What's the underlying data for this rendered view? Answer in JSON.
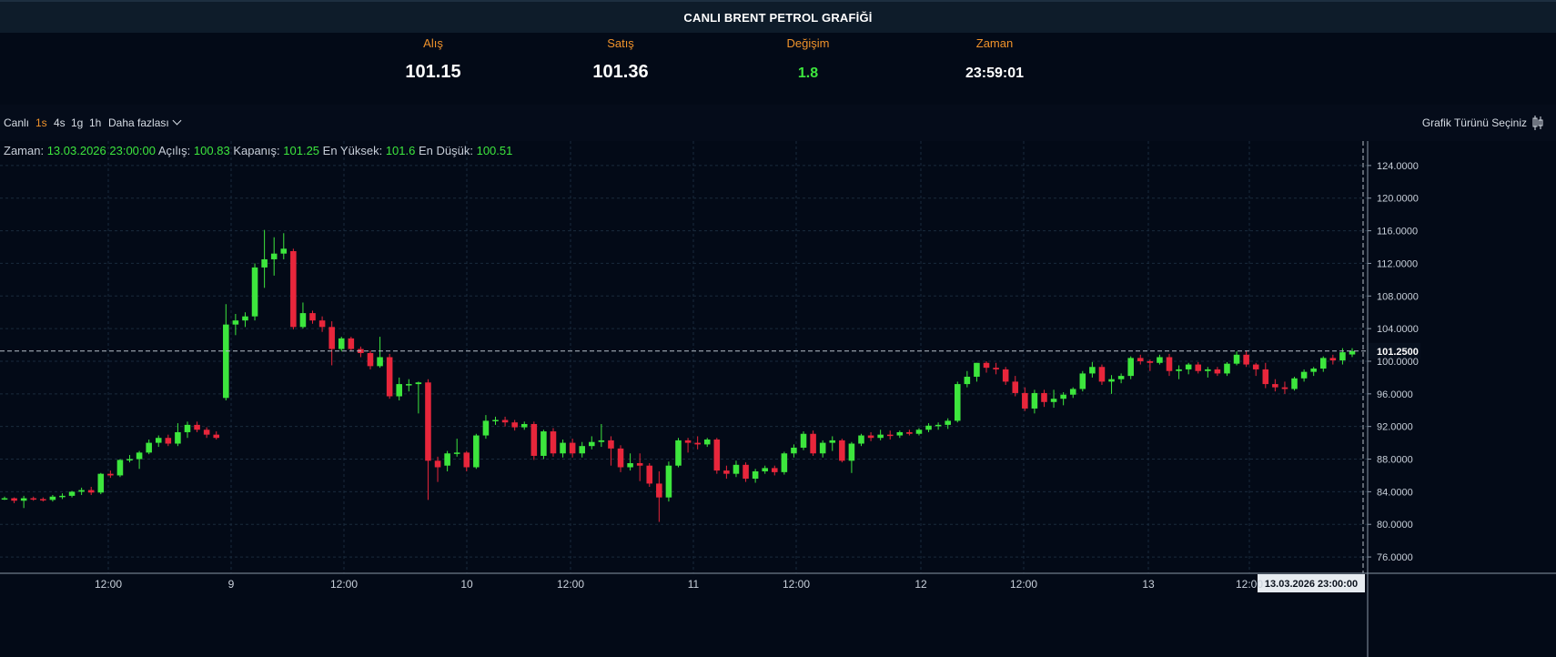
{
  "header": {
    "title": "CANLI BRENT PETROL GRAFİĞİ"
  },
  "quotes": [
    {
      "label": "Alış",
      "value": "101.15"
    },
    {
      "label": "Satış",
      "value": "101.36"
    },
    {
      "label": "Değişim",
      "value": "1.8"
    },
    {
      "label": "Zaman",
      "value": "23:59:01"
    }
  ],
  "toolbar": {
    "live": "Canlı",
    "intervals": [
      "1s",
      "4s",
      "1g",
      "1h"
    ],
    "active_interval": "1s",
    "more": "Daha fazlası",
    "chart_type": "Grafik Türünü Seçiniz"
  },
  "ohlc": {
    "time_label": "Zaman:",
    "time_value": "13.03.2026 23:00:00",
    "open_label": "Açılış:",
    "open_value": "100.83",
    "close_label": "Kapanış:",
    "close_value": "101.25",
    "high_label": "En Yüksek:",
    "high_value": "101.6",
    "low_label": "En Düşük:",
    "low_value": "100.51"
  },
  "colors": {
    "up": "#3de63d",
    "down": "#e8263b",
    "accent": "#f0932b"
  },
  "chart_data": {
    "type": "candlestick",
    "ylim": [
      74,
      127
    ],
    "yticks": [
      "76.0000",
      "80.0000",
      "84.0000",
      "88.0000",
      "92.0000",
      "96.0000",
      "100.0000",
      "104.0000",
      "108.0000",
      "112.0000",
      "116.0000",
      "120.0000",
      "124.0000"
    ],
    "xticks": [
      "12:00",
      "9",
      "12:00",
      "10",
      "12:00",
      "11",
      "12:00",
      "12",
      "12:00",
      "13",
      "12:00"
    ],
    "current_price": "101.2500",
    "crosshair_time": "13.03.2026   23:00:00",
    "grid": true,
    "candles": [
      [
        83.1,
        83.4,
        83.0,
        83.2
      ],
      [
        83.2,
        83.3,
        82.6,
        82.9
      ],
      [
        82.9,
        83.5,
        82.0,
        83.2
      ],
      [
        83.2,
        83.4,
        82.9,
        83.1
      ],
      [
        83.1,
        83.3,
        82.8,
        83.0
      ],
      [
        83.0,
        83.6,
        82.8,
        83.4
      ],
      [
        83.4,
        83.8,
        83.1,
        83.5
      ],
      [
        83.5,
        84.1,
        83.3,
        84.0
      ],
      [
        84.0,
        84.5,
        83.6,
        84.2
      ],
      [
        84.2,
        84.6,
        83.6,
        83.9
      ],
      [
        83.9,
        86.3,
        83.7,
        86.2
      ],
      [
        86.2,
        86.6,
        85.7,
        86.0
      ],
      [
        86.0,
        88.0,
        85.8,
        87.9
      ],
      [
        87.9,
        88.5,
        87.6,
        88.0
      ],
      [
        88.0,
        89.0,
        86.8,
        88.8
      ],
      [
        88.8,
        90.4,
        88.6,
        90.0
      ],
      [
        90.0,
        90.9,
        89.5,
        90.6
      ],
      [
        90.6,
        91.0,
        89.6,
        89.9
      ],
      [
        89.9,
        92.4,
        89.6,
        91.3
      ],
      [
        91.3,
        92.6,
        90.6,
        92.2
      ],
      [
        92.2,
        92.6,
        91.3,
        91.6
      ],
      [
        91.6,
        91.9,
        90.6,
        91.0
      ],
      [
        91.0,
        91.4,
        90.4,
        90.6
      ],
      [
        95.5,
        107.0,
        95.2,
        104.5
      ],
      [
        104.5,
        105.8,
        103.2,
        105.0
      ],
      [
        105.0,
        106.0,
        104.2,
        105.5
      ],
      [
        105.5,
        112.0,
        105.0,
        111.5
      ],
      [
        111.5,
        116.1,
        109.0,
        112.5
      ],
      [
        112.5,
        115.2,
        110.5,
        113.2
      ],
      [
        113.2,
        115.7,
        112.5,
        113.8
      ],
      [
        113.5,
        113.8,
        103.9,
        104.2
      ],
      [
        104.2,
        107.2,
        104.0,
        105.9
      ],
      [
        105.9,
        106.2,
        104.6,
        105.0
      ],
      [
        105.0,
        105.5,
        103.6,
        104.2
      ],
      [
        104.2,
        104.9,
        99.5,
        101.5
      ],
      [
        101.5,
        103.0,
        101.2,
        102.8
      ],
      [
        102.8,
        103.0,
        101.3,
        101.5
      ],
      [
        101.5,
        101.8,
        100.5,
        101.0
      ],
      [
        101.0,
        101.3,
        99.0,
        99.4
      ],
      [
        99.4,
        103.0,
        99.2,
        100.5
      ],
      [
        100.5,
        100.9,
        95.4,
        95.7
      ],
      [
        95.7,
        98.0,
        95.2,
        97.2
      ],
      [
        97.2,
        97.8,
        96.3,
        97.2
      ],
      [
        97.2,
        97.5,
        93.6,
        97.4
      ],
      [
        97.4,
        97.8,
        83.0,
        87.8
      ],
      [
        87.8,
        88.3,
        85.2,
        87.0
      ],
      [
        87.2,
        89.0,
        86.5,
        88.7
      ],
      [
        88.7,
        90.5,
        88.3,
        88.8
      ],
      [
        88.8,
        89.0,
        86.5,
        87.0
      ],
      [
        87.0,
        91.1,
        86.8,
        90.9
      ],
      [
        90.9,
        93.4,
        90.5,
        92.7
      ],
      [
        92.7,
        93.2,
        92.2,
        92.8
      ],
      [
        92.8,
        93.2,
        92.0,
        92.5
      ],
      [
        92.5,
        92.8,
        91.5,
        91.9
      ],
      [
        91.9,
        92.6,
        91.6,
        92.3
      ],
      [
        92.3,
        92.6,
        87.9,
        88.4
      ],
      [
        88.4,
        91.6,
        88.0,
        91.4
      ],
      [
        91.4,
        91.8,
        88.3,
        88.7
      ],
      [
        88.7,
        90.4,
        88.2,
        90.0
      ],
      [
        90.0,
        90.5,
        88.2,
        88.7
      ],
      [
        88.7,
        90.1,
        88.2,
        89.6
      ],
      [
        89.6,
        90.8,
        89.2,
        90.1
      ],
      [
        90.1,
        92.3,
        89.5,
        90.3
      ],
      [
        90.3,
        90.8,
        87.2,
        89.3
      ],
      [
        89.3,
        89.7,
        86.4,
        87.0
      ],
      [
        87.0,
        88.7,
        86.6,
        87.5
      ],
      [
        87.5,
        88.7,
        85.3,
        87.2
      ],
      [
        87.2,
        87.5,
        84.6,
        85.0
      ],
      [
        85.0,
        86.5,
        80.3,
        83.3
      ],
      [
        83.3,
        87.7,
        82.8,
        87.2
      ],
      [
        87.2,
        90.6,
        87.0,
        90.3
      ],
      [
        90.3,
        90.6,
        88.8,
        90.0
      ],
      [
        90.0,
        90.8,
        89.2,
        89.8
      ],
      [
        89.8,
        90.6,
        89.5,
        90.4
      ],
      [
        90.4,
        90.6,
        86.2,
        86.6
      ],
      [
        86.6,
        87.2,
        85.6,
        86.2
      ],
      [
        86.2,
        87.8,
        85.8,
        87.3
      ],
      [
        87.3,
        87.6,
        85.2,
        85.6
      ],
      [
        85.6,
        86.8,
        85.1,
        86.5
      ],
      [
        86.5,
        87.2,
        86.2,
        86.9
      ],
      [
        86.9,
        87.2,
        86.0,
        86.4
      ],
      [
        86.4,
        88.9,
        86.1,
        88.7
      ],
      [
        88.7,
        89.8,
        88.2,
        89.4
      ],
      [
        89.4,
        91.4,
        89.1,
        91.1
      ],
      [
        91.1,
        91.5,
        88.4,
        88.7
      ],
      [
        88.7,
        90.3,
        88.2,
        90.0
      ],
      [
        90.0,
        90.8,
        89.0,
        90.3
      ],
      [
        90.3,
        90.5,
        87.6,
        87.8
      ],
      [
        87.8,
        90.1,
        86.3,
        89.9
      ],
      [
        89.9,
        91.1,
        89.6,
        90.9
      ],
      [
        90.9,
        91.3,
        90.2,
        90.6
      ],
      [
        90.6,
        91.6,
        90.3,
        91.0
      ],
      [
        91.0,
        91.5,
        90.4,
        90.9
      ],
      [
        90.9,
        91.5,
        90.6,
        91.3
      ],
      [
        91.3,
        91.6,
        90.9,
        91.1
      ],
      [
        91.1,
        91.8,
        90.9,
        91.6
      ],
      [
        91.6,
        92.4,
        91.3,
        92.1
      ],
      [
        92.1,
        92.5,
        91.6,
        92.2
      ],
      [
        92.2,
        93.0,
        91.7,
        92.7
      ],
      [
        92.7,
        97.5,
        92.5,
        97.2
      ],
      [
        97.2,
        98.8,
        96.8,
        98.1
      ],
      [
        98.1,
        99.8,
        97.5,
        99.8
      ],
      [
        99.8,
        100.0,
        98.6,
        99.2
      ],
      [
        99.2,
        99.8,
        98.4,
        99.0
      ],
      [
        99.0,
        99.3,
        97.1,
        97.5
      ],
      [
        97.5,
        98.2,
        95.7,
        96.1
      ],
      [
        96.1,
        96.8,
        93.9,
        94.2
      ],
      [
        94.2,
        96.5,
        93.6,
        96.1
      ],
      [
        96.1,
        96.5,
        94.4,
        95.0
      ],
      [
        95.0,
        96.5,
        94.3,
        95.4
      ],
      [
        95.4,
        96.2,
        94.6,
        95.9
      ],
      [
        95.9,
        96.8,
        95.5,
        96.6
      ],
      [
        96.6,
        98.8,
        96.3,
        98.5
      ],
      [
        98.5,
        99.9,
        98.0,
        99.3
      ],
      [
        99.3,
        99.6,
        97.1,
        97.5
      ],
      [
        97.5,
        98.3,
        96.0,
        97.8
      ],
      [
        97.8,
        98.5,
        97.3,
        98.2
      ],
      [
        98.2,
        100.6,
        97.8,
        100.4
      ],
      [
        100.4,
        100.8,
        99.6,
        100.0
      ],
      [
        100.0,
        100.2,
        98.8,
        99.8
      ],
      [
        99.8,
        100.8,
        99.6,
        100.5
      ],
      [
        100.5,
        100.9,
        98.2,
        98.8
      ],
      [
        98.8,
        99.5,
        97.8,
        99.0
      ],
      [
        99.0,
        99.8,
        98.4,
        99.6
      ],
      [
        99.6,
        99.9,
        98.5,
        98.8
      ],
      [
        98.8,
        99.3,
        98.0,
        99.0
      ],
      [
        99.0,
        99.3,
        98.2,
        98.5
      ],
      [
        98.5,
        99.9,
        98.2,
        99.7
      ],
      [
        99.7,
        101.2,
        99.5,
        100.8
      ],
      [
        100.8,
        101.3,
        99.3,
        99.6
      ],
      [
        99.6,
        99.8,
        98.2,
        99.0
      ],
      [
        99.0,
        99.8,
        96.7,
        97.2
      ],
      [
        97.2,
        97.8,
        96.3,
        96.8
      ],
      [
        96.8,
        97.5,
        96.0,
        96.6
      ],
      [
        96.6,
        98.1,
        96.4,
        97.9
      ],
      [
        97.9,
        99.0,
        97.5,
        98.7
      ],
      [
        98.7,
        99.3,
        98.2,
        99.1
      ],
      [
        99.1,
        100.6,
        98.7,
        100.4
      ],
      [
        100.4,
        100.8,
        99.6,
        100.1
      ],
      [
        100.1,
        101.6,
        99.6,
        101.1
      ],
      [
        100.83,
        101.6,
        100.51,
        101.25
      ]
    ]
  }
}
